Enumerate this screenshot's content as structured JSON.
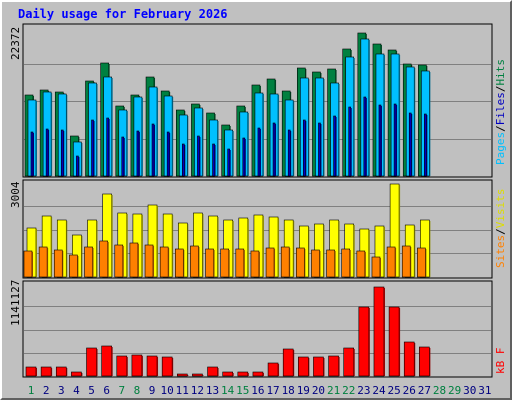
{
  "title": "Daily usage for February 2026",
  "colors": {
    "background": "#C0C0C0",
    "title": "#0000FF",
    "hits": "#008040",
    "files": "#00C0FF",
    "pages": "#0000C0",
    "visits": "#FFFF00",
    "sites": "#FF8000",
    "kbf": "#FF0000",
    "weekend_day": "#008040",
    "weekday_day": "#000080"
  },
  "legend": {
    "panel1": {
      "pages": "Pages",
      "sep1": "/",
      "files": "Files",
      "sep2": "/",
      "hits": "Hits"
    },
    "panel2": {
      "sites": "Sites",
      "sep": "/",
      "visits": "Visits"
    },
    "panel3": {
      "kbf": "kB F"
    }
  },
  "chart_data": [
    {
      "type": "bar",
      "title": "Daily usage for February 2026",
      "categories": [
        "1",
        "2",
        "3",
        "4",
        "5",
        "6",
        "7",
        "8",
        "9",
        "10",
        "11",
        "12",
        "13",
        "14",
        "15",
        "16",
        "17",
        "18",
        "19",
        "20",
        "21",
        "22",
        "23",
        "24",
        "25",
        "26",
        "27",
        "28",
        "29",
        "30",
        "31"
      ],
      "ymax_label": "22372",
      "ylim": [
        0,
        22372
      ],
      "series": [
        {
          "name": "Hits",
          "values": [
            12100,
            12800,
            12600,
            5900,
            14200,
            16900,
            10500,
            12100,
            14700,
            12700,
            9800,
            10800,
            9400,
            7600,
            10500,
            13500,
            14400,
            12700,
            16100,
            15500,
            16000,
            19000,
            21300,
            19700,
            18800,
            16700,
            16600,
            null,
            null,
            null,
            null
          ]
        },
        {
          "name": "Files",
          "values": [
            11400,
            12500,
            12200,
            5100,
            13800,
            14800,
            9900,
            11800,
            13200,
            12000,
            9100,
            10100,
            8400,
            6800,
            9500,
            12400,
            12200,
            11300,
            14600,
            14600,
            13900,
            17700,
            20400,
            18200,
            18200,
            16200,
            15700,
            null,
            null,
            null,
            null
          ]
        },
        {
          "name": "Pages",
          "values": [
            6500,
            7000,
            6800,
            3000,
            8300,
            8700,
            5800,
            6700,
            7800,
            6500,
            4800,
            5900,
            4800,
            4000,
            5700,
            7200,
            7900,
            6800,
            8400,
            7900,
            8900,
            10300,
            11800,
            10600,
            10800,
            9400,
            9200,
            null,
            null,
            null,
            null
          ]
        }
      ]
    },
    {
      "type": "bar",
      "categories": [
        "1",
        "2",
        "3",
        "4",
        "5",
        "6",
        "7",
        "8",
        "9",
        "10",
        "11",
        "12",
        "13",
        "14",
        "15",
        "16",
        "17",
        "18",
        "19",
        "20",
        "21",
        "22",
        "23",
        "24",
        "25",
        "26",
        "27",
        "28",
        "29",
        "30",
        "31"
      ],
      "ymax_label": "3004",
      "ylim": [
        0,
        3004
      ],
      "series": [
        {
          "name": "Visits",
          "values": [
            1550,
            1930,
            1800,
            1320,
            1800,
            2640,
            2030,
            1980,
            2280,
            1990,
            1720,
            2020,
            1930,
            1800,
            1870,
            1950,
            1900,
            1800,
            1600,
            1690,
            1800,
            1690,
            1510,
            1600,
            2950,
            1660,
            1800,
            null,
            null,
            null,
            null
          ]
        },
        {
          "name": "Sites",
          "values": [
            810,
            960,
            840,
            690,
            940,
            1130,
            1000,
            1060,
            1000,
            940,
            870,
            990,
            870,
            870,
            870,
            810,
            920,
            940,
            930,
            860,
            860,
            870,
            810,
            640,
            940,
            970,
            920,
            null,
            null,
            null,
            null
          ]
        }
      ]
    },
    {
      "type": "bar",
      "categories": [
        "1",
        "2",
        "3",
        "4",
        "5",
        "6",
        "7",
        "8",
        "9",
        "10",
        "11",
        "12",
        "13",
        "14",
        "15",
        "16",
        "17",
        "18",
        "19",
        "20",
        "21",
        "22",
        "23",
        "24",
        "25",
        "26",
        "27",
        "28",
        "29",
        "30",
        "31"
      ],
      "ymax_label": "1141127",
      "ylim": [
        0,
        1141127
      ],
      "series": [
        {
          "name": "kB F",
          "values": [
            114100,
            114100,
            114100,
            53300,
            345600,
            368300,
            250400,
            262100,
            250400,
            227200,
            30500,
            30500,
            114100,
            48700,
            48700,
            53300,
            165300,
            328400,
            227200,
            227200,
            250400,
            345600,
            845400,
            1092200,
            845400,
            413800,
            353400,
            null,
            null,
            null,
            null
          ]
        }
      ]
    }
  ],
  "weekend_days": [
    1,
    7,
    8,
    14,
    15,
    21,
    22,
    28,
    29
  ]
}
